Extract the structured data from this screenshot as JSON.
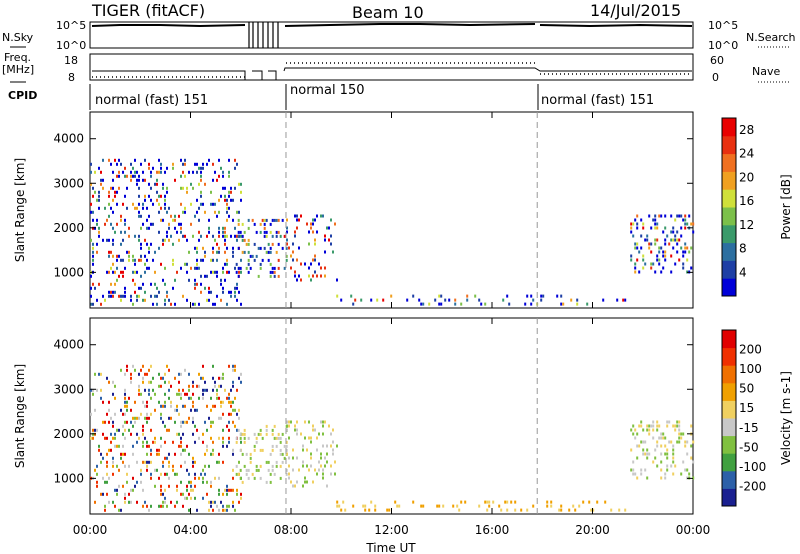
{
  "header": {
    "radar": "TIGER (fitACF)",
    "beam": "Beam 10",
    "date": "14/Jul/2015"
  },
  "status_panel": {
    "nsky_label": "N.Sky",
    "nsky_ticks": [
      "10^5",
      "10^0"
    ],
    "nsearch_label": "N.Search",
    "nsearch_ticks": [
      "10^5",
      "10^0"
    ],
    "freq_label_line1": "Freq.",
    "freq_label_line2": "[MHz]",
    "freq_ticks": [
      "18",
      "8"
    ],
    "nave_label": "Nave",
    "nave_ticks": [
      "60",
      "0"
    ],
    "cpid_label": "CPID",
    "modes": [
      {
        "label": "normal (fast) 151",
        "start_hour": 0.0
      },
      {
        "label": "normal 150",
        "start_hour": 7.8
      },
      {
        "label": "normal (fast) 151",
        "start_hour": 17.8
      }
    ]
  },
  "colors": {
    "power_scale": [
      "#0000d8",
      "#1e3fa5",
      "#2c6fa0",
      "#3a9a6a",
      "#7cc04a",
      "#cfe03a",
      "#f0a020",
      "#f07020",
      "#e83010",
      "#e80000"
    ],
    "velocity_scale": [
      "#e00000",
      "#f03000",
      "#f07000",
      "#f0a000",
      "#f0d060",
      "#c8c8c8",
      "#80c040",
      "#40a040",
      "#2c60a8",
      "#1a2090"
    ]
  },
  "chart_data": [
    {
      "type": "heatmap",
      "panel": "power",
      "xlabel": "",
      "ylabel": "Slant Range [km]",
      "x_ticks": [
        "00:00",
        "04:00",
        "08:00",
        "12:00",
        "16:00",
        "20:00",
        "00:00"
      ],
      "y_ticks": [
        1000,
        2000,
        3000,
        4000
      ],
      "ylim": [
        200,
        4600
      ],
      "xlim_hours": [
        0,
        24
      ],
      "colorbar_label": "Power [dB]",
      "colorbar_ticks": [
        4,
        8,
        12,
        16,
        20,
        24,
        28
      ],
      "colorbar_range": [
        0,
        30
      ],
      "scatter_regions": [
        {
          "t0": 0.0,
          "t1": 6.0,
          "r0": 250,
          "r1": 3550,
          "density": 0.55
        },
        {
          "t0": 5.8,
          "t1": 7.8,
          "r0": 900,
          "r1": 2200,
          "density": 0.6
        },
        {
          "t0": 7.8,
          "t1": 9.8,
          "r0": 800,
          "r1": 2300,
          "density": 0.5
        },
        {
          "t0": 9.8,
          "t1": 21.5,
          "r0": 250,
          "r1": 500,
          "density": 0.35
        },
        {
          "t0": 21.5,
          "t1": 24.0,
          "r0": 1000,
          "r1": 2300,
          "density": 0.7
        }
      ]
    },
    {
      "type": "heatmap",
      "panel": "velocity",
      "xlabel": "Time UT",
      "ylabel": "Slant Range [km]",
      "x_ticks": [
        "00:00",
        "04:00",
        "08:00",
        "12:00",
        "16:00",
        "20:00",
        "00:00"
      ],
      "y_ticks": [
        1000,
        2000,
        3000,
        4000
      ],
      "ylim": [
        200,
        4600
      ],
      "xlim_hours": [
        0,
        24
      ],
      "colorbar_label": "Velocity [m s-1]",
      "colorbar_ticks": [
        200,
        100,
        50,
        15,
        -15,
        -50,
        -100,
        -200
      ],
      "scatter_regions": [
        {
          "t0": 0.0,
          "t1": 6.0,
          "r0": 250,
          "r1": 3550,
          "density": 0.55
        },
        {
          "t0": 5.8,
          "t1": 7.8,
          "r0": 900,
          "r1": 2200,
          "density": 0.6
        },
        {
          "t0": 7.8,
          "t1": 9.8,
          "r0": 800,
          "r1": 2300,
          "density": 0.5
        },
        {
          "t0": 9.8,
          "t1": 21.5,
          "r0": 250,
          "r1": 500,
          "density": 0.35
        },
        {
          "t0": 21.5,
          "t1": 24.0,
          "r0": 1000,
          "r1": 2300,
          "density": 0.7
        }
      ]
    }
  ]
}
